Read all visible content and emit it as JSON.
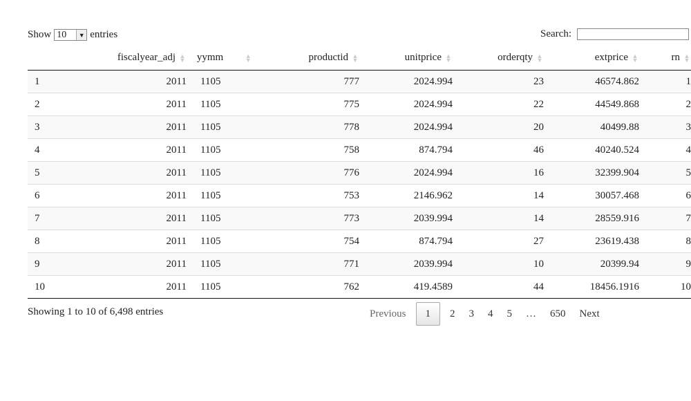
{
  "controls": {
    "show_label": "Show",
    "length_value": "10",
    "entries_label": "entries",
    "search_label": "Search:"
  },
  "table": {
    "columns": [
      "",
      "fiscalyear_adj",
      "yymm",
      "productid",
      "unitprice",
      "orderqty",
      "extprice",
      "rn"
    ],
    "rows": [
      [
        "1",
        "2011",
        "1105",
        "777",
        "2024.994",
        "23",
        "46574.862",
        "1"
      ],
      [
        "2",
        "2011",
        "1105",
        "775",
        "2024.994",
        "22",
        "44549.868",
        "2"
      ],
      [
        "3",
        "2011",
        "1105",
        "778",
        "2024.994",
        "20",
        "40499.88",
        "3"
      ],
      [
        "4",
        "2011",
        "1105",
        "758",
        "874.794",
        "46",
        "40240.524",
        "4"
      ],
      [
        "5",
        "2011",
        "1105",
        "776",
        "2024.994",
        "16",
        "32399.904",
        "5"
      ],
      [
        "6",
        "2011",
        "1105",
        "753",
        "2146.962",
        "14",
        "30057.468",
        "6"
      ],
      [
        "7",
        "2011",
        "1105",
        "773",
        "2039.994",
        "14",
        "28559.916",
        "7"
      ],
      [
        "8",
        "2011",
        "1105",
        "754",
        "874.794",
        "27",
        "23619.438",
        "8"
      ],
      [
        "9",
        "2011",
        "1105",
        "771",
        "2039.994",
        "10",
        "20399.94",
        "9"
      ],
      [
        "10",
        "2011",
        "1105",
        "762",
        "419.4589",
        "44",
        "18456.1916",
        "10"
      ]
    ]
  },
  "info": "Showing 1 to 10 of 6,498 entries",
  "pagination": {
    "previous": "Previous",
    "pages": [
      "1",
      "2",
      "3",
      "4",
      "5",
      "…",
      "650"
    ],
    "next": "Next"
  }
}
